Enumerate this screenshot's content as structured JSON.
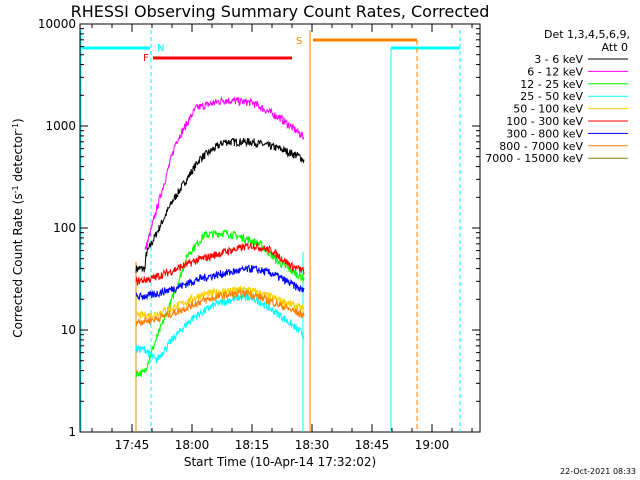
{
  "chart_data": {
    "type": "line",
    "title": "RHESSI Observing Summary Count Rates, Corrected",
    "xlabel": "Start Time (10-Apr-14 17:32:02)",
    "ylabel_main": "Corrected Count Rate (s",
    "ylabel_sup1": "-1",
    "ylabel_mid": " detector",
    "ylabel_sup2": "-1",
    "ylabel_end": ")",
    "yscale": "log",
    "ylim": [
      1,
      10000
    ],
    "xlim_minutes_after_1730": [
      2,
      102
    ],
    "x_ticks": [
      {
        "label": "17:45",
        "minute": 15
      },
      {
        "label": "18:00",
        "minute": 30
      },
      {
        "label": "18:15",
        "minute": 45
      },
      {
        "label": "18:30",
        "minute": 60
      },
      {
        "label": "18:45",
        "minute": 75
      },
      {
        "label": "19:00",
        "minute": 90
      }
    ],
    "y_ticks": [
      {
        "label": "1",
        "value": 1
      },
      {
        "label": "10",
        "value": 10
      },
      {
        "label": "100",
        "value": 100
      },
      {
        "label": "1000",
        "value": 1000
      },
      {
        "label": "10000",
        "value": 10000
      }
    ],
    "legend_header": [
      "Det 1,3,4,5,6,9,",
      "Att 0"
    ],
    "footer_date": "22-Oct-2021 08:33",
    "flags": [
      {
        "label": "N",
        "color": "#00ffff"
      },
      {
        "label": "F",
        "color": "#ff0000"
      },
      {
        "label": "S",
        "color": "#ff8000"
      }
    ],
    "series": [
      {
        "name": "3 - 6 keV",
        "color": "#000000",
        "points": [
          [
            16,
            40
          ],
          [
            18.3,
            40
          ],
          [
            18.5,
            55
          ],
          [
            25,
            180
          ],
          [
            32,
            480
          ],
          [
            38,
            700
          ],
          [
            45,
            700
          ],
          [
            52,
            600
          ],
          [
            57,
            500
          ],
          [
            58,
            460
          ]
        ]
      },
      {
        "name": "6 - 12 keV",
        "color": "#ff00ff",
        "points": [
          [
            18.3,
            60
          ],
          [
            22,
            200
          ],
          [
            26,
            700
          ],
          [
            31,
            1500
          ],
          [
            38,
            1800
          ],
          [
            45,
            1700
          ],
          [
            52,
            1200
          ],
          [
            58,
            780
          ]
        ]
      },
      {
        "name": "12 - 25 keV",
        "color": "#00ff00",
        "points": [
          [
            16,
            3.8
          ],
          [
            18,
            3.8
          ],
          [
            21,
            8
          ],
          [
            25,
            20
          ],
          [
            29,
            55
          ],
          [
            33,
            85
          ],
          [
            38,
            90
          ],
          [
            43,
            80
          ],
          [
            47,
            70
          ],
          [
            52,
            45
          ],
          [
            58,
            32
          ]
        ]
      },
      {
        "name": "25 - 50 keV",
        "color": "#00ffff",
        "points": [
          [
            16,
            6.5
          ],
          [
            18.3,
            6.5
          ],
          [
            21,
            5
          ],
          [
            25,
            8
          ],
          [
            30,
            13
          ],
          [
            36,
            18
          ],
          [
            42,
            21
          ],
          [
            46,
            20
          ],
          [
            52,
            14
          ],
          [
            58,
            9
          ]
        ]
      },
      {
        "name": "50 - 100 keV",
        "color": "#ffd000",
        "points": [
          [
            16,
            14
          ],
          [
            20,
            14
          ],
          [
            26,
            17
          ],
          [
            32,
            22
          ],
          [
            38,
            24
          ],
          [
            44,
            25
          ],
          [
            50,
            21
          ],
          [
            58,
            16
          ]
        ]
      },
      {
        "name": "100 - 300 keV",
        "color": "#ff0000",
        "points": [
          [
            16,
            30
          ],
          [
            20,
            32
          ],
          [
            25,
            38
          ],
          [
            31,
            48
          ],
          [
            38,
            58
          ],
          [
            45,
            68
          ],
          [
            50,
            60
          ],
          [
            55,
            42
          ],
          [
            58,
            38
          ]
        ]
      },
      {
        "name": "300 - 800 keV",
        "color": "#0000ff",
        "points": [
          [
            16,
            21
          ],
          [
            20,
            22
          ],
          [
            26,
            26
          ],
          [
            32,
            32
          ],
          [
            38,
            36
          ],
          [
            45,
            40
          ],
          [
            50,
            36
          ],
          [
            55,
            28
          ],
          [
            58,
            24
          ]
        ]
      },
      {
        "name": "800 - 7000 keV",
        "color": "#ff8000",
        "points": [
          [
            16,
            12
          ],
          [
            20,
            12.5
          ],
          [
            26,
            15
          ],
          [
            32,
            19
          ],
          [
            38,
            22
          ],
          [
            44,
            23
          ],
          [
            50,
            19
          ],
          [
            56,
            15
          ],
          [
            58,
            14
          ]
        ]
      },
      {
        "name": "7000 - 15000 keV",
        "color": "#808000",
        "points": []
      }
    ]
  }
}
